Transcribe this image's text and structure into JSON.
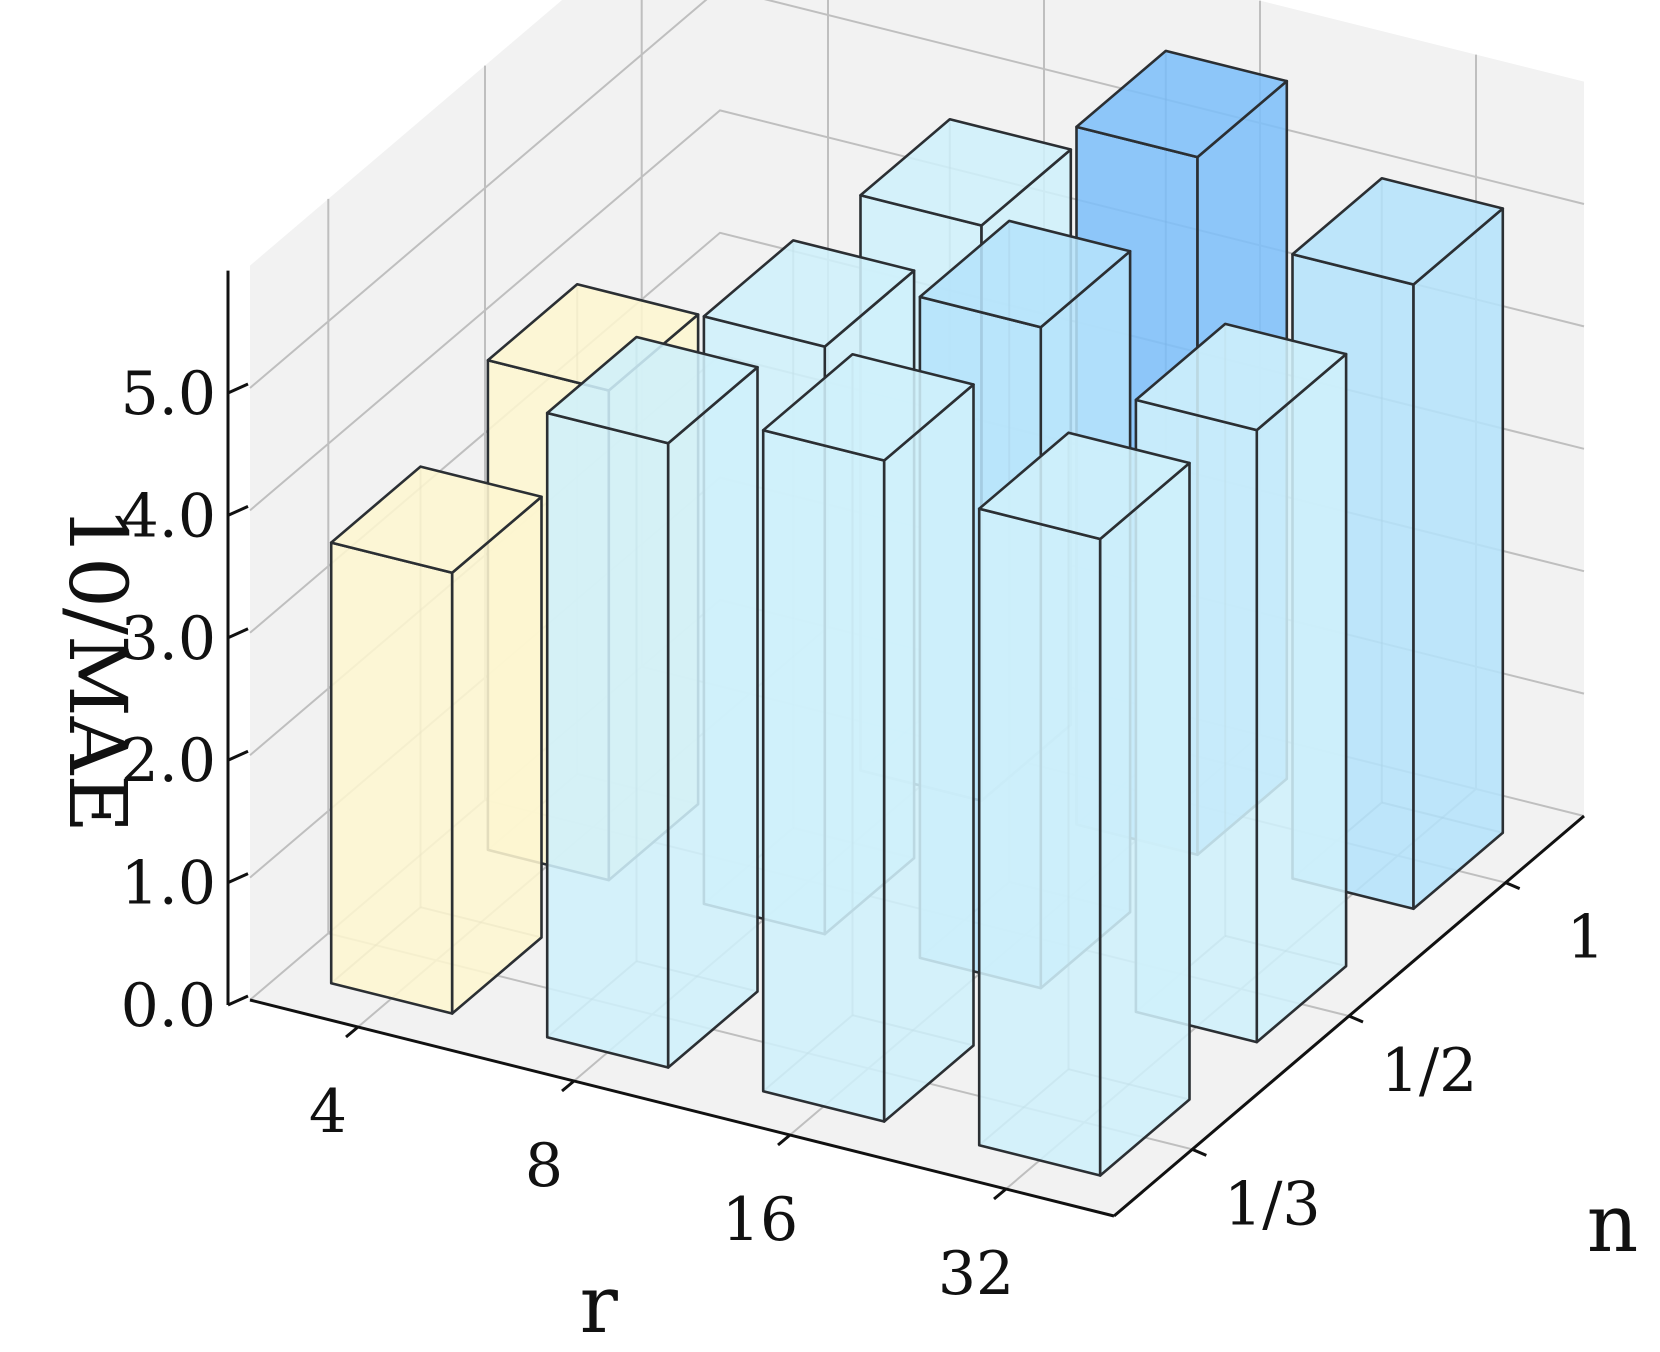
{
  "chart_data": {
    "type": "bar3d",
    "title": "",
    "xlabel": "r",
    "ylabel": "n",
    "zlabel": "10/MAE",
    "x_categories": [
      "4",
      "8",
      "16",
      "32"
    ],
    "y_categories": [
      "1/3",
      "1/2",
      "1"
    ],
    "zticks": [
      "0.0",
      "1.0",
      "2.0",
      "3.0",
      "4.0",
      "5.0"
    ],
    "zlim": [
      0,
      6
    ],
    "grid": true,
    "bars": [
      {
        "r": "4",
        "n": "1/3",
        "value": 3.6,
        "color": "#fdf6d0"
      },
      {
        "r": "4",
        "n": "1/2",
        "value": 4.0,
        "color": "#fdf6d0"
      },
      {
        "r": "8",
        "n": "1/3",
        "value": 5.1,
        "color": "#cff0fb"
      },
      {
        "r": "8",
        "n": "1/2",
        "value": 4.8,
        "color": "#cff0fb"
      },
      {
        "r": "8",
        "n": "1",
        "value": 4.7,
        "color": "#cff0fb"
      },
      {
        "r": "16",
        "n": "1/3",
        "value": 5.4,
        "color": "#cff0fb"
      },
      {
        "r": "16",
        "n": "1/2",
        "value": 5.4,
        "color": "#b5e3fb"
      },
      {
        "r": "16",
        "n": "1",
        "value": 5.7,
        "color": "#7ebff9"
      },
      {
        "r": "32",
        "n": "1/3",
        "value": 5.2,
        "color": "#cff0fb"
      },
      {
        "r": "32",
        "n": "1/2",
        "value": 5.0,
        "color": "#cff0fb"
      },
      {
        "r": "32",
        "n": "1",
        "value": 5.1,
        "color": "#b5e3fb"
      },
      {
        "r": "8",
        "n": "1/3",
        "value": 0,
        "color": "#cff0fb",
        "hidden": true
      }
    ],
    "colors": {
      "pale_yellow": "#fdf6d0",
      "pale_cyan": "#cff0fb",
      "light_blue": "#b5e3fb",
      "medium_blue": "#7ebff9",
      "edge": "#2b2f33",
      "pane": "#f2f2f2",
      "grid": "#bfbfbf"
    }
  }
}
